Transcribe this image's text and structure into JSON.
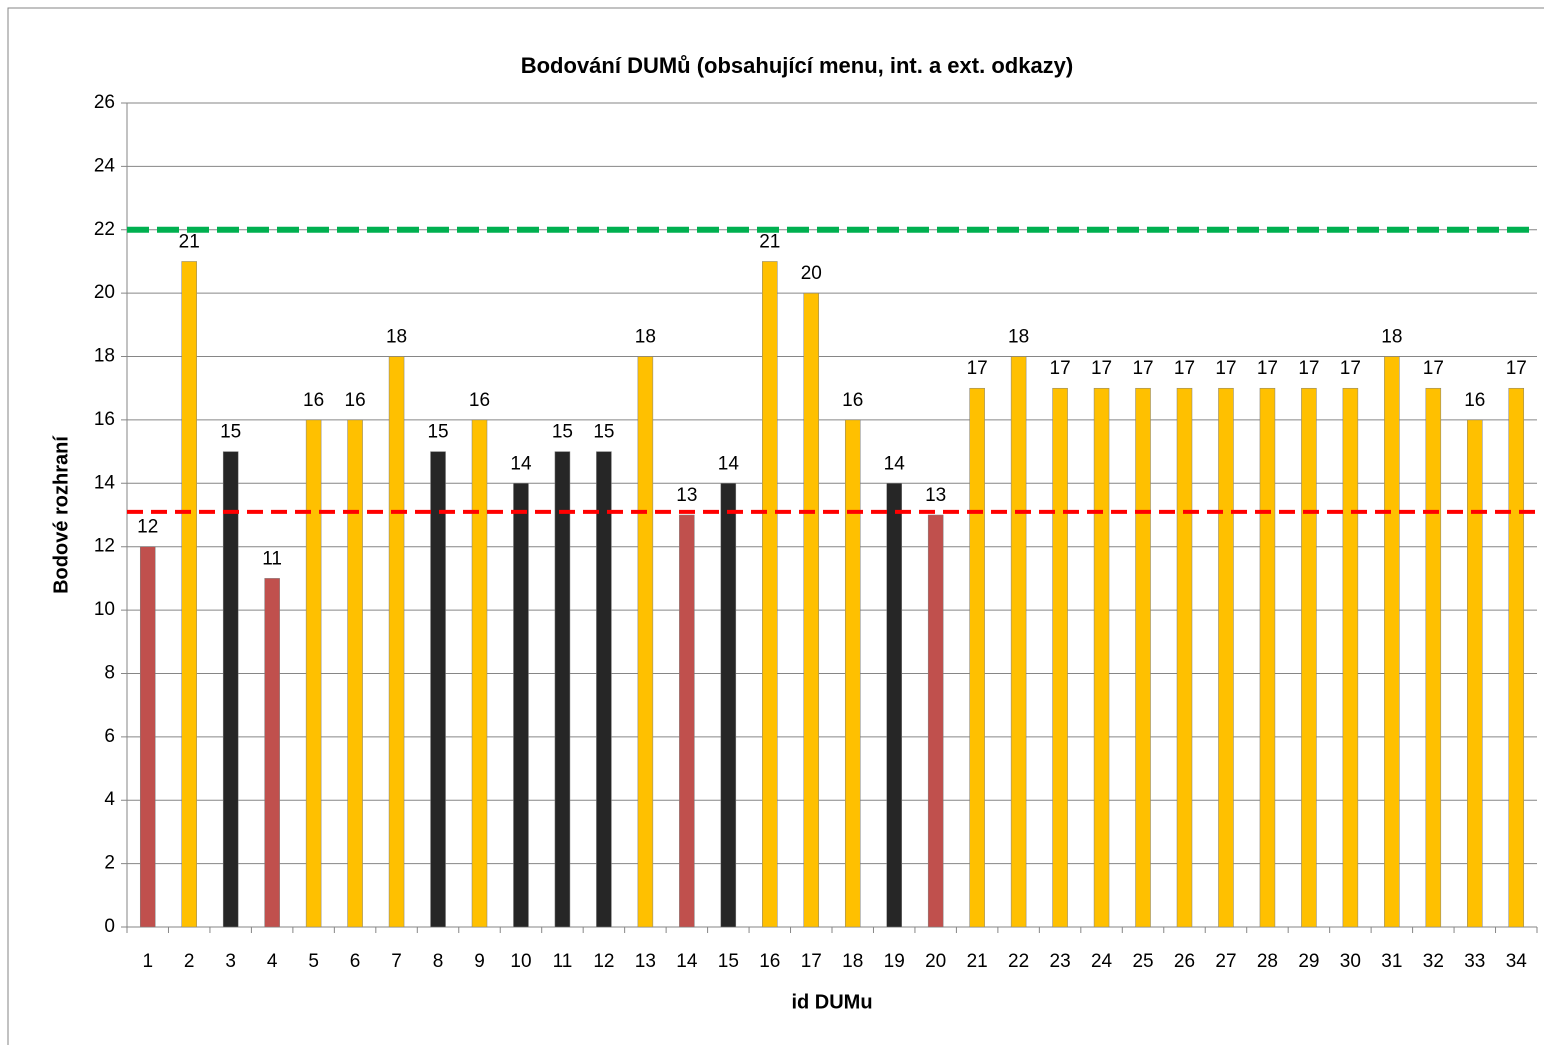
{
  "chart_data": {
    "type": "bar",
    "title": "Bodování DUMů (obsahující menu, int. a ext. odkazy)",
    "x_label": "id DUMu",
    "y_label": "Bodové rozhraní",
    "categories": [
      "1",
      "2",
      "3",
      "4",
      "5",
      "6",
      "7",
      "8",
      "9",
      "10",
      "11",
      "12",
      "13",
      "14",
      "15",
      "16",
      "17",
      "18",
      "19",
      "20",
      "21",
      "22",
      "23",
      "24",
      "25",
      "26",
      "27",
      "28",
      "29",
      "30",
      "31",
      "32",
      "33",
      "34"
    ],
    "values": [
      12,
      21,
      15,
      11,
      16,
      16,
      18,
      15,
      16,
      14,
      15,
      15,
      18,
      13,
      14,
      21,
      20,
      16,
      14,
      13,
      17,
      18,
      17,
      17,
      17,
      17,
      17,
      17,
      17,
      17,
      18,
      17,
      16,
      17
    ],
    "colors": [
      "#c0504d",
      "#ffc000",
      "#262626",
      "#c0504d",
      "#ffc000",
      "#ffc000",
      "#ffc000",
      "#262626",
      "#ffc000",
      "#262626",
      "#262626",
      "#262626",
      "#ffc000",
      "#c0504d",
      "#262626",
      "#ffc000",
      "#ffc000",
      "#ffc000",
      "#262626",
      "#c0504d",
      "#ffc000",
      "#ffc000",
      "#ffc000",
      "#ffc000",
      "#ffc000",
      "#ffc000",
      "#ffc000",
      "#ffc000",
      "#ffc000",
      "#ffc000",
      "#ffc000",
      "#ffc000",
      "#ffc000",
      "#ffc000"
    ],
    "reference_lines": [
      {
        "value": 22,
        "color": "#00b050"
      },
      {
        "value": 13.1,
        "color": "#ff0000"
      }
    ],
    "ylim": [
      0,
      26
    ],
    "yticks": [
      0,
      2,
      4,
      6,
      8,
      10,
      12,
      14,
      16,
      18,
      20,
      22,
      24,
      26
    ],
    "grid": true
  }
}
